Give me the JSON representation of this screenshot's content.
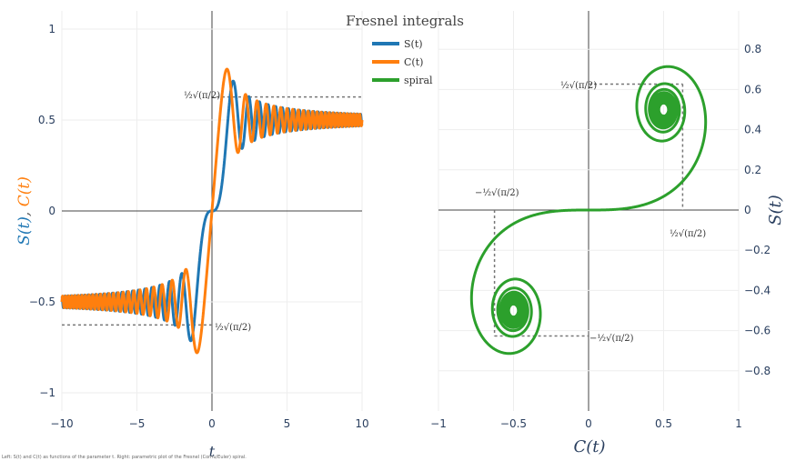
{
  "title": "Fresnel integrals",
  "legend": [
    "S(t)",
    "C(t)",
    "spiral"
  ],
  "colors": {
    "S": "#1f77b4",
    "C": "#ff7f0e",
    "spiral": "#2ca02c"
  },
  "caption": "Left: S(t) and C(t) as functions of the parameter t. Right: parametric plot of the Fresnel (Cornu/Euler) spiral.",
  "annotations": {
    "left_pos": "½√(π/2)",
    "left_neg": "−½√(π/2)"
  },
  "chart_data": [
    {
      "type": "line",
      "xlabel": "t",
      "ylabel": "S(t), C(t)",
      "xlim": [
        -10,
        10
      ],
      "ylim": [
        -1.1,
        1.1
      ],
      "xticks": [
        -10,
        -5,
        0,
        5,
        10
      ],
      "xtick_labels": [
        "−10",
        "−5",
        "0",
        "5",
        "10"
      ],
      "yticks": [
        -1,
        -0.5,
        0,
        0.5,
        1
      ],
      "ytick_labels": [
        "−1",
        "−0.5",
        "0",
        "0.5",
        "1"
      ],
      "legend_position": "top-right",
      "series": [
        {
          "name": "S(t)",
          "function": "fresnel_S",
          "t_range": [
            -10,
            10
          ]
        },
        {
          "name": "C(t)",
          "function": "fresnel_C",
          "t_range": [
            -10,
            10
          ]
        }
      ],
      "reference_level": 0.6267
    },
    {
      "type": "line",
      "xlabel": "C(t)",
      "ylabel": "S(t)",
      "xlim": [
        -1,
        1
      ],
      "ylim": [
        -1,
        1
      ],
      "xticks": [
        -1,
        -0.5,
        0,
        0.5,
        1
      ],
      "xtick_labels": [
        "−1",
        "−0.5",
        "0",
        "0.5",
        "1"
      ],
      "yticks": [
        -0.8,
        -0.6,
        -0.4,
        -0.2,
        0,
        0.2,
        0.4,
        0.6,
        0.8
      ],
      "ytick_labels": [
        "−0.8",
        "−0.6",
        "−0.4",
        "−0.2",
        "0",
        "0.2",
        "0.4",
        "0.6",
        "0.8"
      ],
      "series": [
        {
          "name": "spiral",
          "x_function": "fresnel_C",
          "y_function": "fresnel_S",
          "t_range": [
            -10,
            10
          ]
        }
      ],
      "limit_point": [
        0.6267,
        0.6267
      ]
    }
  ]
}
